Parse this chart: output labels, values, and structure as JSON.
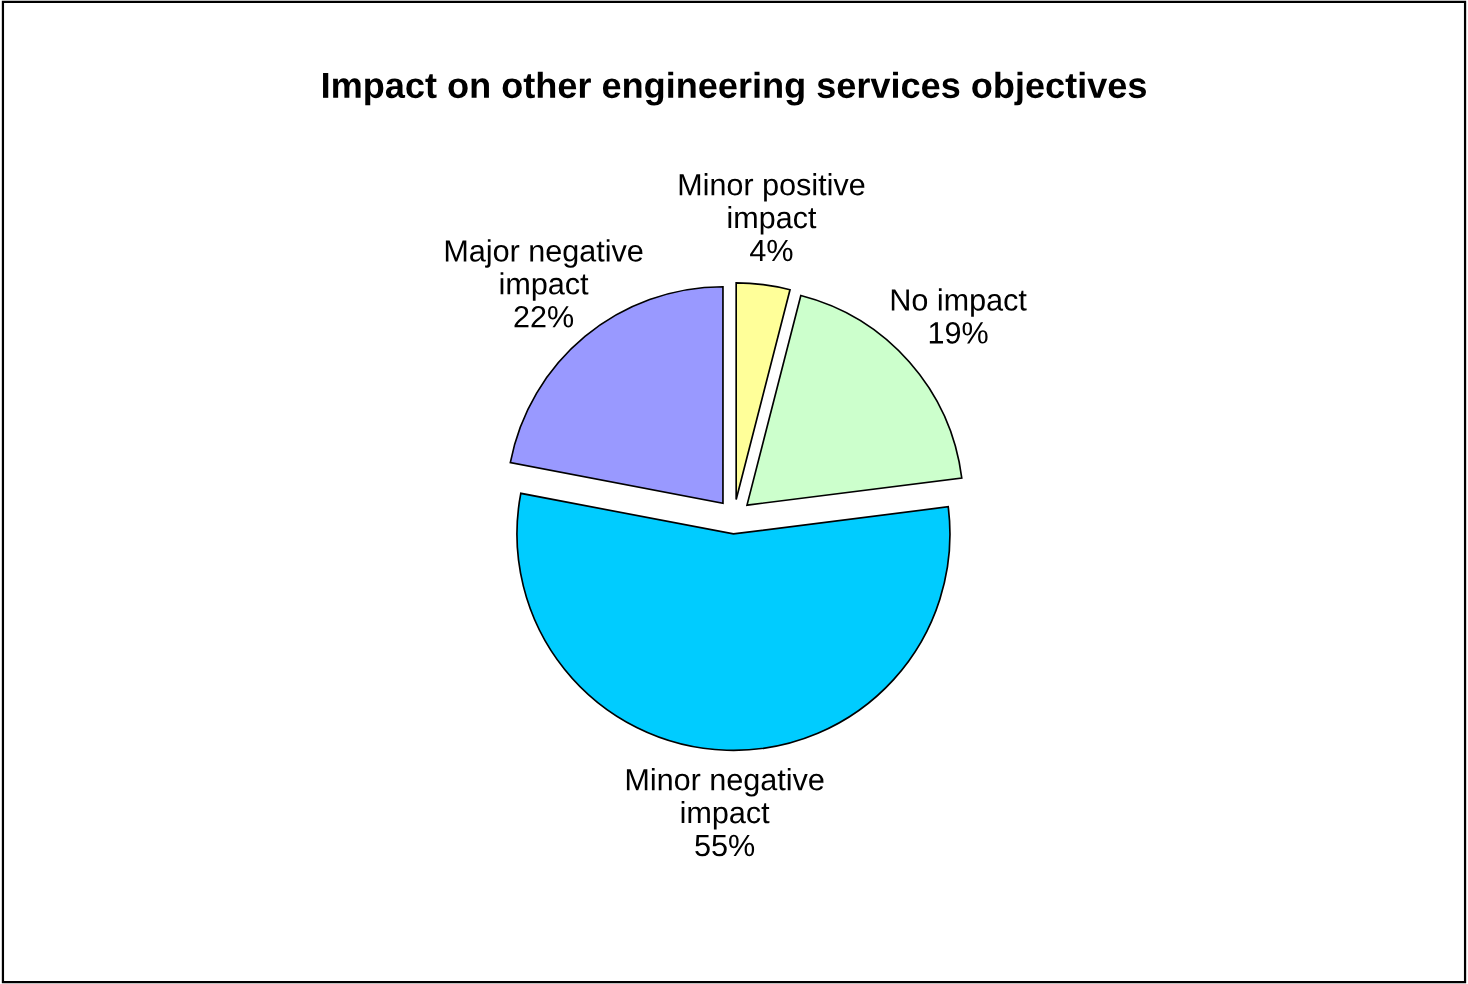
{
  "chart_data": {
    "type": "pie",
    "title": "Impact on other engineering services objectives",
    "categories": [
      "Minor positive\nimpact",
      "No impact",
      "Minor negative\nimpact",
      "Major negative\nimpact"
    ],
    "values": [
      4,
      19,
      55,
      22
    ],
    "value_labels": [
      "4%",
      "19%",
      "55%",
      "22%"
    ],
    "colors": [
      "#ffff99",
      "#ccffcc",
      "#00ccff",
      "#9999ff"
    ],
    "legend": false
  }
}
